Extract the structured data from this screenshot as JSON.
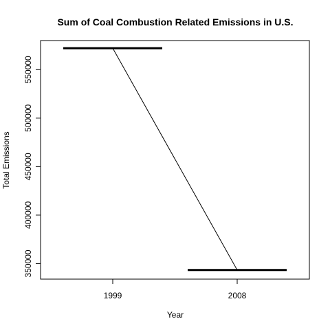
{
  "chart_data": {
    "type": "line",
    "title": "Sum of Coal Combustion Related Emissions in U.S.",
    "xlabel": "Year",
    "ylabel": "Total Emissions",
    "categories": [
      "1999",
      "2008"
    ],
    "series": [
      {
        "values": [
          572126,
          343432
        ]
      }
    ],
    "yticks": [
      350000,
      400000,
      450000,
      500000,
      550000
    ],
    "ytick_labels": [
      "350000",
      "400000",
      "450000",
      "500000",
      "550000"
    ],
    "ylim": [
      334000,
      580000
    ],
    "grid": false,
    "legend": "none",
    "line_color": "#000000"
  }
}
